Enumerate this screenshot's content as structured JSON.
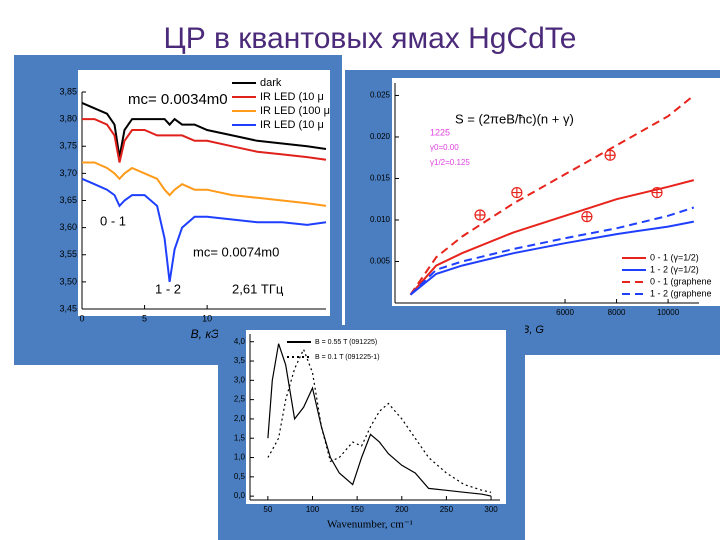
{
  "title": "ЦР в квантовых ямах HgCdTe",
  "chart_data": [
    {
      "type": "line",
      "x": [
        0,
        1,
        2,
        2.6,
        3,
        3.4,
        4,
        5,
        6,
        6.6,
        7,
        7.4,
        8,
        9,
        10,
        12,
        14,
        16,
        18,
        19.5
      ],
      "series": [
        {
          "name": "dark",
          "color": "#000000",
          "style": "solid",
          "values": [
            3.83,
            3.82,
            3.81,
            3.79,
            3.73,
            3.78,
            3.8,
            3.8,
            3.8,
            3.8,
            3.79,
            3.8,
            3.79,
            3.79,
            3.78,
            3.77,
            3.76,
            3.755,
            3.75,
            3.745
          ]
        },
        {
          "name": "IR LED (10 μ",
          "color": "#e0201b",
          "style": "solid",
          "values": [
            3.8,
            3.8,
            3.79,
            3.77,
            3.72,
            3.76,
            3.78,
            3.78,
            3.77,
            3.77,
            3.77,
            3.77,
            3.77,
            3.76,
            3.76,
            3.75,
            3.74,
            3.735,
            3.73,
            3.725
          ]
        },
        {
          "name": "IR LED (100 μ",
          "color": "#ff9a1a",
          "style": "solid",
          "values": [
            3.72,
            3.72,
            3.71,
            3.7,
            3.69,
            3.7,
            3.71,
            3.7,
            3.69,
            3.67,
            3.66,
            3.67,
            3.68,
            3.67,
            3.67,
            3.66,
            3.655,
            3.65,
            3.645,
            3.64
          ]
        },
        {
          "name": "IR LED (10 μ",
          "color": "#1f3fff",
          "style": "solid",
          "values": [
            3.69,
            3.68,
            3.67,
            3.66,
            3.64,
            3.65,
            3.66,
            3.66,
            3.64,
            3.58,
            3.5,
            3.56,
            3.6,
            3.62,
            3.62,
            3.615,
            3.61,
            3.61,
            3.605,
            3.61
          ]
        }
      ],
      "xlim": [
        0,
        19.5
      ],
      "xticks": [
        0,
        5,
        10
      ],
      "ylim": [
        3.45,
        3.85
      ],
      "yticks": [
        {
          "value": 3.45,
          "label": "3,45"
        },
        {
          "value": 3.5,
          "label": "3,50"
        },
        {
          "value": 3.55,
          "label": "3,55"
        },
        {
          "value": 3.6,
          "label": "3,60"
        },
        {
          "value": 3.65,
          "label": "3,65"
        },
        {
          "value": 3.7,
          "label": "3,70"
        },
        {
          "value": 3.75,
          "label": "3,75"
        },
        {
          "value": 3.8,
          "label": "3,80"
        },
        {
          "value": 3.85,
          "label": "3,85"
        }
      ],
      "x_label": "B, кЭ",
      "annotations": [
        "mc= 0.0034m0",
        "mc= 0.0074m0",
        "0 - 1",
        "1 - 2",
        "2,61 ТГц"
      ]
    },
    {
      "type": "line",
      "x": [
        0,
        1000,
        2000,
        4000,
        6000,
        8000,
        10000,
        11000
      ],
      "series": [
        {
          "name": "0 - 1 (γ=1/2)",
          "color": "#e8231c",
          "style": "solid",
          "values": [
            0.001,
            0.0045,
            0.006,
            0.0085,
            0.0105,
            0.0125,
            0.014,
            0.0148
          ]
        },
        {
          "name": "1 - 2 (γ=1/2)",
          "color": "#1f3fff",
          "style": "solid",
          "values": [
            0.001,
            0.0035,
            0.0045,
            0.006,
            0.0072,
            0.0083,
            0.0092,
            0.0098
          ]
        },
        {
          "name": "0 - 1 (graphene",
          "color": "#e8231c",
          "style": "dashed",
          "values": [
            0.001,
            0.0055,
            0.008,
            0.012,
            0.0155,
            0.019,
            0.0225,
            0.025
          ]
        },
        {
          "name": "1 - 2 (graphene",
          "color": "#1f3fff",
          "style": "dashed",
          "values": [
            0.001,
            0.004,
            0.005,
            0.0065,
            0.0078,
            0.009,
            0.0105,
            0.0115
          ]
        },
        {
          "color": "#e8231c",
          "style": "markers",
          "x": [
            2700,
            4130,
            7750,
            6850,
            9570
          ],
          "values": [
            0.0106,
            0.0133,
            0.0178,
            0.0104,
            0.0133
          ]
        }
      ],
      "xlim": [
        -600,
        11200
      ],
      "xticks": [
        6000,
        8000,
        10000
      ],
      "ylim": [
        0,
        0.0265
      ],
      "yticks": [
        0.005,
        {
          "value": 0.01,
          "label": "0.010"
        },
        0.015,
        {
          "value": 0.02,
          "label": "0.020"
        },
        0.025
      ],
      "x_label": "B, G",
      "annotations": [
        "S = (2πeB/ħc)(n + γ)",
        "1225",
        "γ0=0.00",
        "γ1/2=0.125"
      ]
    },
    {
      "type": "line",
      "x": [
        50,
        55,
        62,
        70,
        80,
        90,
        100,
        110,
        120,
        130,
        145,
        155,
        165,
        175,
        185,
        200,
        215,
        230,
        250,
        270,
        290,
        300
      ],
      "series": [
        {
          "name": "B = 0.55 T (091225)",
          "color": "#000000",
          "style": "solid",
          "values": [
            1.5,
            3.0,
            3.95,
            3.4,
            2.0,
            2.3,
            2.8,
            1.8,
            1.0,
            0.6,
            0.3,
            1.0,
            1.6,
            1.4,
            1.1,
            0.8,
            0.6,
            0.2,
            0.15,
            0.1,
            0.05,
            0.0
          ]
        },
        {
          "name": "B = 0.1 T (091225-1)",
          "color": "#000000",
          "style": "dotted",
          "values": [
            1.0,
            1.2,
            1.5,
            2.5,
            3.3,
            3.8,
            3.2,
            1.8,
            0.9,
            1.0,
            1.4,
            1.3,
            1.8,
            2.2,
            2.4,
            2.0,
            1.5,
            1.0,
            0.6,
            0.3,
            0.15,
            0.1
          ]
        }
      ],
      "xlim": [
        30,
        310
      ],
      "xticks": [
        50,
        100,
        150,
        200,
        250,
        300
      ],
      "ylim": [
        -0.1,
        4.2
      ],
      "yticks": [
        {
          "value": 0,
          "label": "0,0"
        },
        {
          "value": 0.5,
          "label": "0,5"
        },
        {
          "value": 1,
          "label": "1,0"
        },
        {
          "value": 1.5,
          "label": "1,5"
        },
        {
          "value": 2,
          "label": "2,0"
        },
        {
          "value": 2.5,
          "label": "2,5"
        },
        {
          "value": 3,
          "label": "3,0"
        },
        {
          "value": 3.5,
          "label": "3,5"
        },
        {
          "value": 4,
          "label": "4,0"
        }
      ],
      "x_label": "Wavenumber, cm⁻¹"
    }
  ]
}
